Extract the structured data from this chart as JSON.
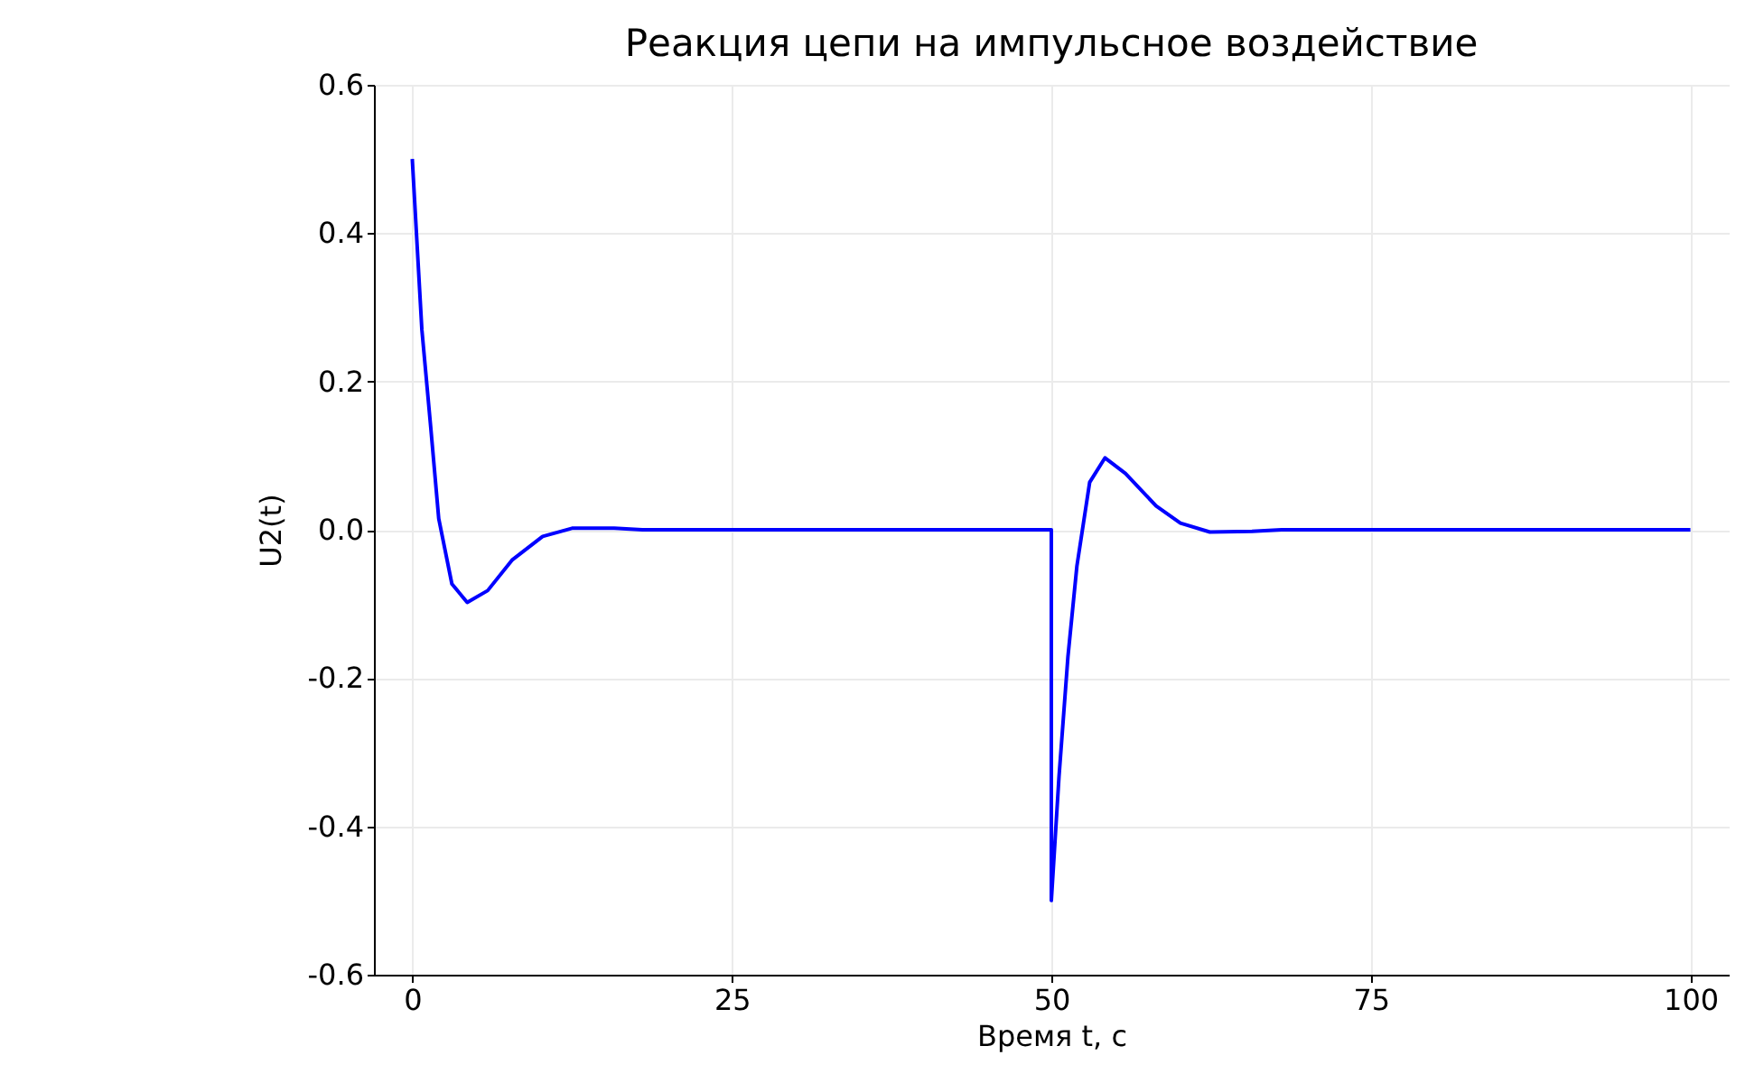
{
  "chart_data": {
    "type": "line",
    "title": "Реакция цепи на импульсное воздействие",
    "xlabel": "Время t, с",
    "ylabel": "U2(t)",
    "x": [
      0,
      0.75,
      1.45,
      2.07,
      3.1,
      4.3,
      5.9,
      7.8,
      10.2,
      12.5,
      15.8,
      18,
      30,
      50,
      50,
      50.6,
      51.3,
      52,
      53,
      54.2,
      55.8,
      58.2,
      60.1,
      62.4,
      65.7,
      68,
      80,
      100
    ],
    "series": [
      {
        "color": "#0000ff",
        "values": [
          0.5,
          0.27,
          0.137,
          0.015,
          -0.073,
          -0.098,
          -0.082,
          -0.041,
          -0.009,
          0.002,
          0.002,
          0,
          0,
          0,
          -0.5,
          -0.333,
          -0.171,
          -0.049,
          0.064,
          0.097,
          0.076,
          0.032,
          0.009,
          -0.003,
          -0.002,
          0,
          0,
          0
        ]
      }
    ],
    "xlim": [
      -3,
      103
    ],
    "xticks": [
      0,
      25,
      50,
      75,
      100
    ],
    "ylim": [
      -0.6,
      0.6
    ],
    "yticks": [
      -0.6,
      -0.4,
      -0.2,
      {
        "value": 0,
        "label": "0.0"
      },
      0.2,
      0.4,
      0.6
    ],
    "grid": true
  }
}
